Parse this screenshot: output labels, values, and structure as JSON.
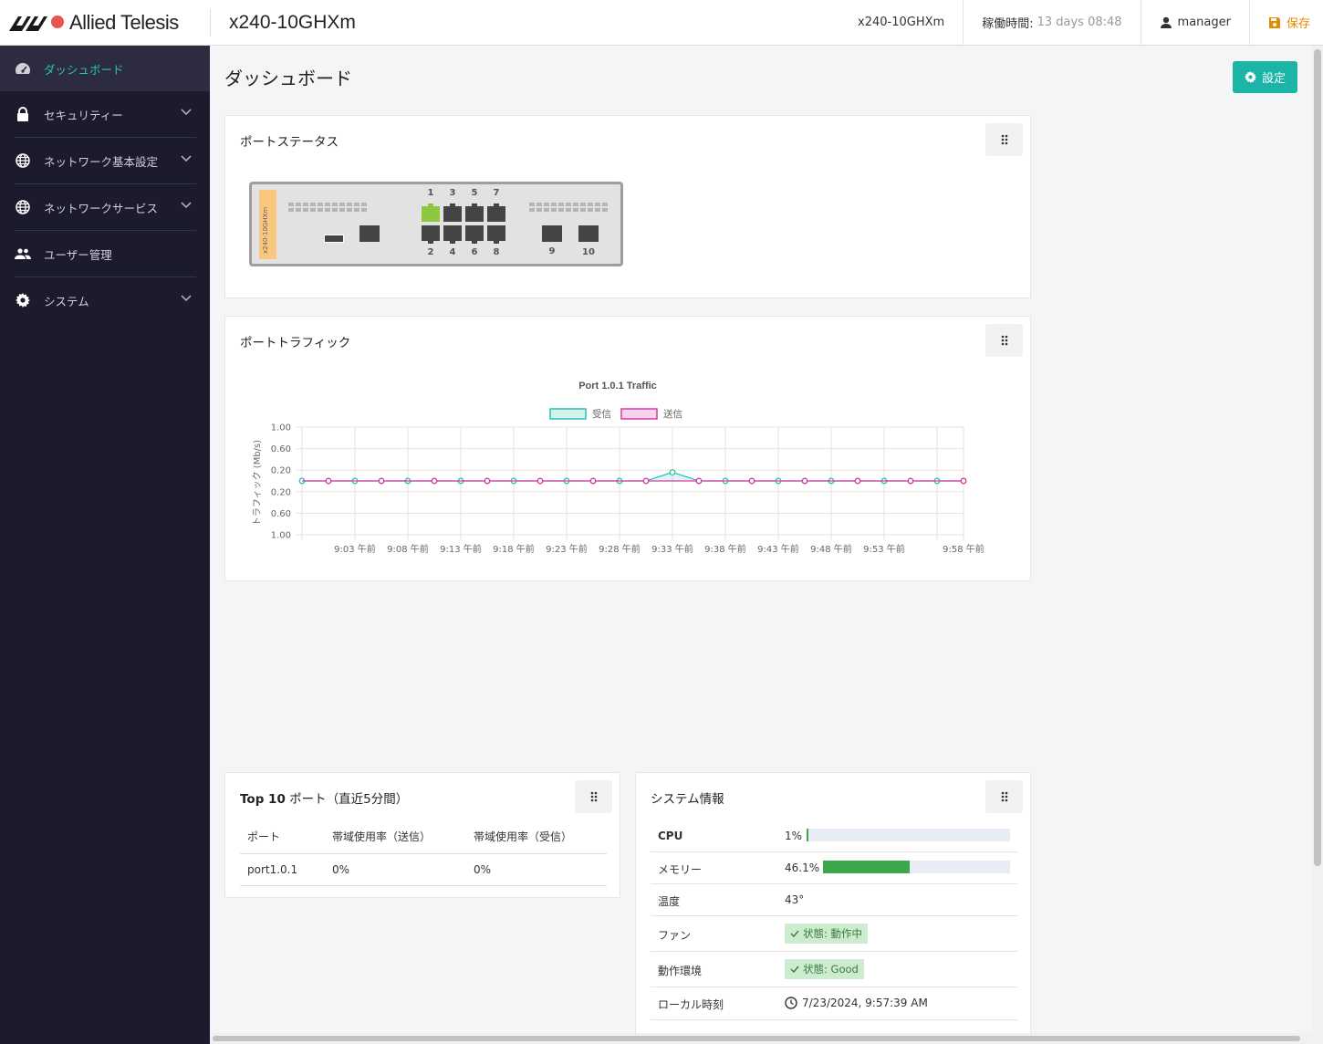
{
  "header": {
    "brand": "Allied Telesis",
    "device_title": "x240-10GHXm",
    "hostname": "x240-10GHXm",
    "uptime_label": "稼働時間:",
    "uptime_value": "13 days 08:48",
    "user": "manager",
    "save_label": "保存"
  },
  "sidebar": {
    "items": [
      {
        "label": "ダッシュボード",
        "icon": "dashboard-icon",
        "active": true
      },
      {
        "label": "セキュリティー",
        "icon": "lock-icon"
      },
      {
        "label": "ネットワーク基本設定",
        "icon": "globe-icon"
      },
      {
        "label": "ネットワークサービス",
        "icon": "globe-icon"
      },
      {
        "label": "ユーザー管理",
        "icon": "users-icon"
      },
      {
        "label": "システム",
        "icon": "gear-icon"
      }
    ]
  },
  "page": {
    "title": "ダッシュボード",
    "settings_label": "設定"
  },
  "port_status": {
    "title": "ポートステータス",
    "device_label": "x240-10GHXm",
    "top_numbers": [
      "1",
      "3",
      "5",
      "7"
    ],
    "bottom_numbers": [
      "2",
      "4",
      "6",
      "8"
    ],
    "sfp_numbers": [
      "9",
      "10"
    ],
    "link_up_ports": [
      "1"
    ]
  },
  "port_traffic": {
    "title": "ポートトラフィック"
  },
  "chart_data": {
    "type": "line",
    "title": "Port 1.0.1 Traffic",
    "ylabel": "トラフィック (Mb/s)",
    "y_tick_labels": [
      "1.00",
      "0.60",
      "0.20",
      "0.20",
      "0.60",
      "1.00"
    ],
    "x_tick_labels": [
      "9:03 午前",
      "9:08 午前",
      "9:13 午前",
      "9:18 午前",
      "9:23 午前",
      "9:28 午前",
      "9:33 午前",
      "9:38 午前",
      "9:43 午前",
      "9:48 午前",
      "9:53 午前",
      "9:58 午前"
    ],
    "legend_position": "top-center",
    "series": [
      {
        "name": "受信",
        "color": "#2bbfaf",
        "values": [
          0,
          0,
          0,
          0,
          0,
          0,
          0,
          0,
          0,
          0,
          0,
          0,
          0,
          0,
          0.16,
          0,
          0,
          0,
          0,
          0,
          0,
          0,
          0,
          0,
          0,
          0
        ]
      },
      {
        "name": "送信",
        "color": "#d63aa8",
        "values": [
          0,
          0,
          0,
          0,
          0,
          0,
          0,
          0,
          0,
          0,
          0,
          0,
          0,
          0,
          0,
          0,
          0,
          0,
          0,
          0,
          0,
          0,
          0,
          0,
          0,
          0
        ]
      }
    ],
    "ylim": [
      -1,
      1
    ],
    "grid": true
  },
  "top10": {
    "title_bold": "Top 10",
    "title_rest": " ポート（直近5分間）",
    "headers": [
      "ポート",
      "帯域使用率（送信）",
      "帯域使用率（受信）"
    ],
    "rows": [
      [
        "port1.0.1",
        "0%",
        "0%"
      ]
    ]
  },
  "system_info": {
    "title": "システム情報",
    "cpu_label": "CPU",
    "cpu_value": "1%",
    "cpu_fraction": 0.01,
    "memory_label": "メモリー",
    "memory_value": "46.1%",
    "memory_fraction": 0.461,
    "temp_label": "温度",
    "temp_value": "43°",
    "fan_label": "ファン",
    "fan_status": "状態: 動作中",
    "env_label": "動作環境",
    "env_status": "状態: Good",
    "time_label": "ローカル時刻",
    "time_value": "7/23/2024, 9:57:39 AM"
  },
  "colors": {
    "accent": "#1ab5a6",
    "sidebar_bg": "#1c1b2e",
    "save": "#e68a00",
    "link_up": "#8dc63f",
    "rx": "#2bbfaf",
    "tx": "#d63aa8",
    "ok_badge": "#cdeccf"
  }
}
